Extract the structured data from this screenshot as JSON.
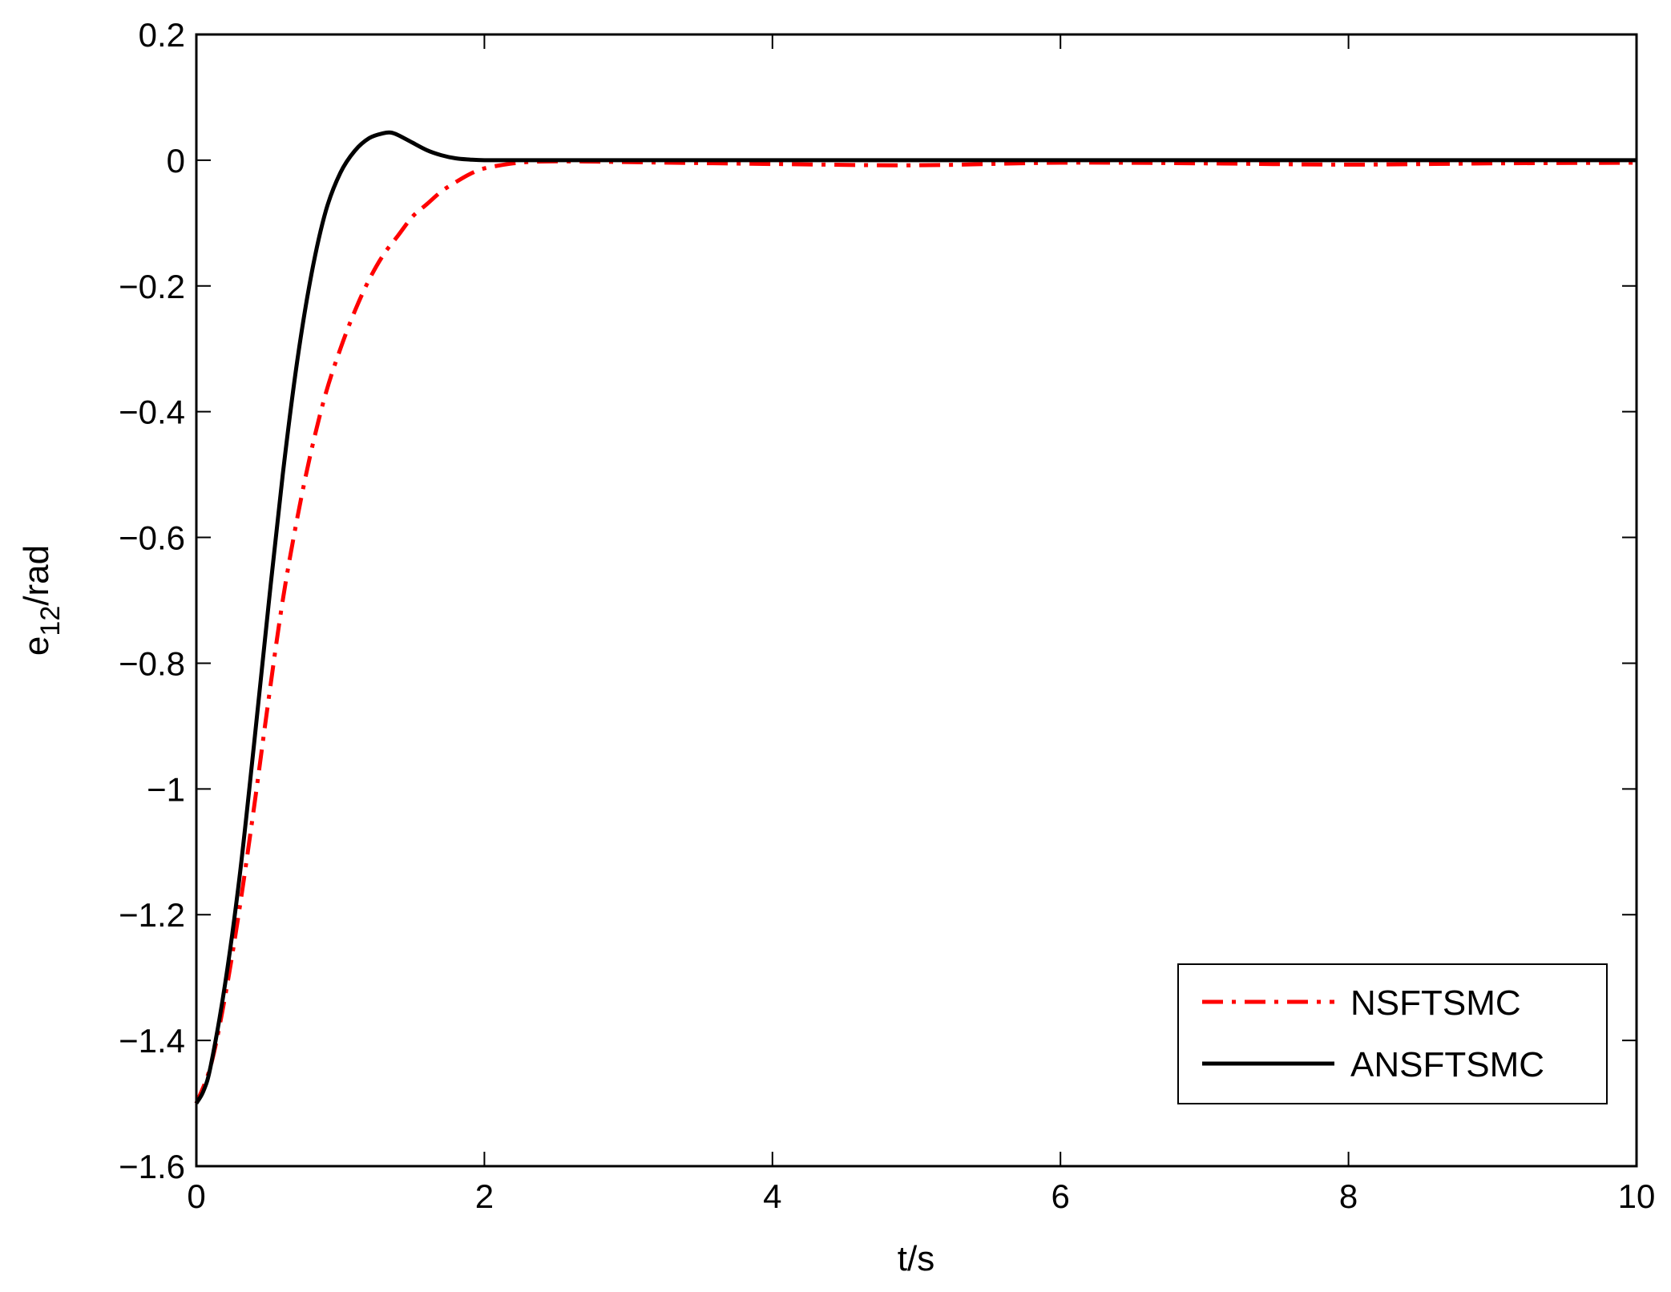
{
  "chart_data": {
    "type": "line",
    "title": "",
    "xlabel": "t/s",
    "ylabel": {
      "base": "e",
      "subscript": "12",
      "suffix": "/rad"
    },
    "xlim": [
      0,
      10
    ],
    "ylim": [
      -1.6,
      0.2
    ],
    "xticks": [
      0,
      2,
      4,
      6,
      8,
      10
    ],
    "xtick_labels": [
      "0",
      "2",
      "4",
      "6",
      "8",
      "10"
    ],
    "yticks": [
      0.2,
      0,
      -0.2,
      -0.4,
      -0.6,
      -0.8,
      -1,
      -1.2,
      -1.4,
      -1.6
    ],
    "ytick_labels": [
      "0.2",
      "0",
      "−0.2",
      "−0.4",
      "−0.6",
      "−0.8",
      "−1",
      "−1.2",
      "−1.4",
      "−1.6"
    ],
    "grid": false,
    "legend_position": "bottom-right",
    "series": [
      {
        "name": "NSFTSMC",
        "color": "#ff0000",
        "style": "dash-dot",
        "x": [
          0,
          0.1,
          0.2,
          0.3,
          0.4,
          0.5,
          0.6,
          0.7,
          0.8,
          0.9,
          1.0,
          1.1,
          1.2,
          1.3,
          1.4,
          1.5,
          1.6,
          1.7,
          1.8,
          1.9,
          2.0,
          2.2,
          2.4,
          2.7,
          3.0,
          4.0,
          5.0,
          6.0,
          7.0,
          8.0,
          9.0,
          10.0
        ],
        "y": [
          -1.5,
          -1.44,
          -1.33,
          -1.19,
          -1.03,
          -0.86,
          -0.7,
          -0.57,
          -0.46,
          -0.37,
          -0.3,
          -0.24,
          -0.19,
          -0.15,
          -0.12,
          -0.09,
          -0.07,
          -0.05,
          -0.035,
          -0.022,
          -0.013,
          -0.005,
          -0.002,
          -0.002,
          -0.003,
          -0.006,
          -0.008,
          -0.004,
          -0.005,
          -0.007,
          -0.005,
          -0.004
        ]
      },
      {
        "name": "ANSFTSMC",
        "color": "#000000",
        "style": "solid",
        "x": [
          0,
          0.05,
          0.1,
          0.2,
          0.3,
          0.4,
          0.5,
          0.6,
          0.7,
          0.8,
          0.9,
          1.0,
          1.1,
          1.2,
          1.3,
          1.35,
          1.4,
          1.5,
          1.6,
          1.7,
          1.8,
          1.9,
          2.0,
          2.2,
          2.5,
          3.0,
          10.0
        ],
        "y": [
          -1.5,
          -1.48,
          -1.44,
          -1.31,
          -1.14,
          -0.93,
          -0.71,
          -0.5,
          -0.32,
          -0.18,
          -0.08,
          -0.02,
          0.015,
          0.035,
          0.043,
          0.044,
          0.04,
          0.028,
          0.016,
          0.008,
          0.003,
          0.001,
          0.0,
          0.0,
          0.0,
          0.0,
          0.0
        ]
      }
    ]
  }
}
